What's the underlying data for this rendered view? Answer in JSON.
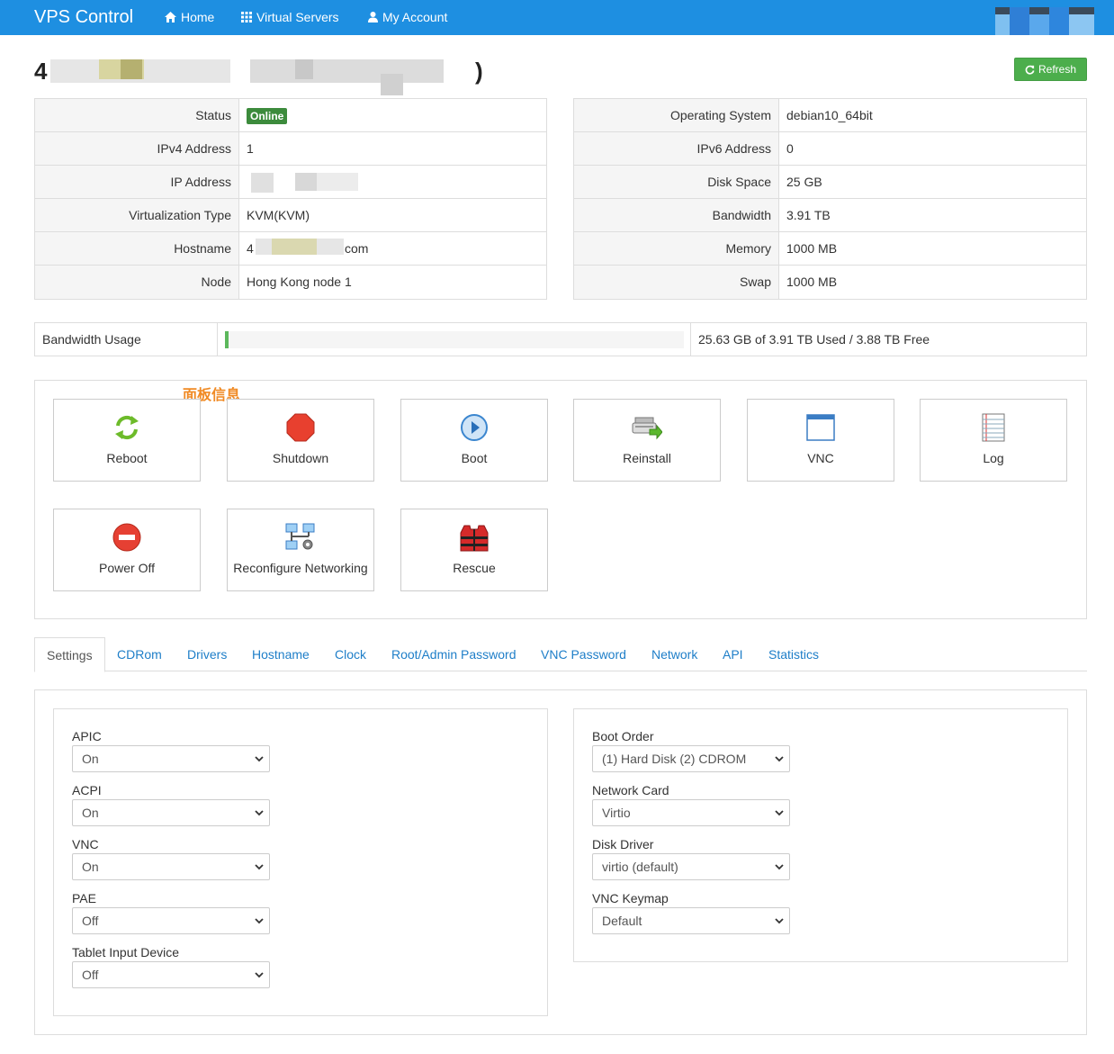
{
  "nav": {
    "brand": "VPS Control",
    "home": "Home",
    "virtual_servers": "Virtual Servers",
    "my_account": "My Account"
  },
  "title": {
    "prefix": "4",
    "suffix": ")"
  },
  "refresh_label": "Refresh",
  "left_table": [
    {
      "label": "Status",
      "value": "Online"
    },
    {
      "label": "IPv4 Address",
      "value": "1"
    },
    {
      "label": "IP Address",
      "value": ""
    },
    {
      "label": "Virtualization Type",
      "value": "KVM(KVM)"
    },
    {
      "label": "Hostname",
      "value": "4",
      "value_suffix": "com"
    },
    {
      "label": "Node",
      "value": "Hong Kong node 1"
    }
  ],
  "right_table": [
    {
      "label": "Operating System",
      "value": "debian10_64bit"
    },
    {
      "label": "IPv6 Address",
      "value": "0"
    },
    {
      "label": "Disk Space",
      "value": "25 GB"
    },
    {
      "label": "Bandwidth",
      "value": "3.91 TB"
    },
    {
      "label": "Memory",
      "value": "1000 MB"
    },
    {
      "label": "Swap",
      "value": "1000 MB"
    }
  ],
  "bandwidth": {
    "label": "Bandwidth Usage",
    "usage_fraction": 0.0064,
    "text": "25.63 GB of 3.91 TB Used / 3.88 TB Free"
  },
  "annotation": "面板信息",
  "actions": [
    {
      "label": "Reboot",
      "icon": "reboot-icon"
    },
    {
      "label": "Shutdown",
      "icon": "shutdown-icon"
    },
    {
      "label": "Boot",
      "icon": "boot-icon"
    },
    {
      "label": "Reinstall",
      "icon": "reinstall-icon"
    },
    {
      "label": "VNC",
      "icon": "vnc-icon"
    },
    {
      "label": "Log",
      "icon": "log-icon"
    },
    {
      "label": "Power Off",
      "icon": "power-off-icon"
    },
    {
      "label": "Reconfigure Networking",
      "icon": "network-icon"
    },
    {
      "label": "Rescue",
      "icon": "rescue-icon"
    }
  ],
  "tabs": [
    "Settings",
    "CDRom",
    "Drivers",
    "Hostname",
    "Clock",
    "Root/Admin Password",
    "VNC Password",
    "Network",
    "API",
    "Statistics"
  ],
  "active_tab": "Settings",
  "settings_left": [
    {
      "label": "APIC",
      "value": "On"
    },
    {
      "label": "ACPI",
      "value": "On"
    },
    {
      "label": "VNC",
      "value": "On"
    },
    {
      "label": "PAE",
      "value": "Off"
    },
    {
      "label": "Tablet Input Device",
      "value": "Off"
    }
  ],
  "settings_right": [
    {
      "label": "Boot Order",
      "value": "(1) Hard Disk (2) CDROM"
    },
    {
      "label": "Network Card",
      "value": "Virtio"
    },
    {
      "label": "Disk Driver",
      "value": "virtio (default)"
    },
    {
      "label": "VNC Keymap",
      "value": "Default"
    }
  ],
  "colors": {
    "navbar": "#1e8fe1",
    "refresh": "#4cae4c",
    "online": "#3c8b3c",
    "link": "#1e7ec8",
    "annotation": "#f08a24"
  }
}
